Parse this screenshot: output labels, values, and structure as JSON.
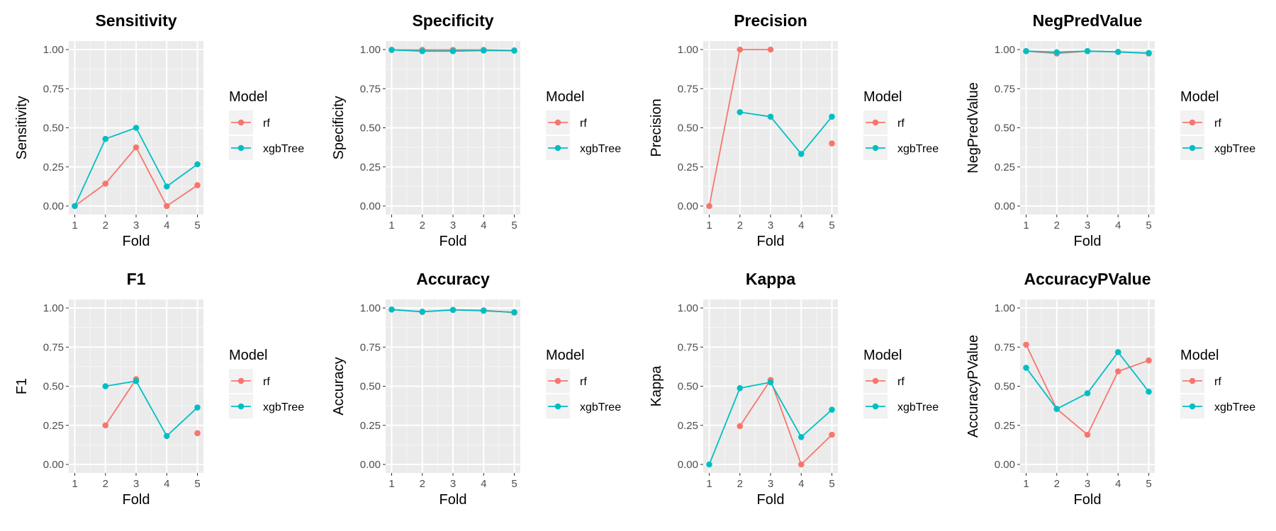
{
  "legend": {
    "title": "Model",
    "entries": [
      {
        "name": "rf",
        "color": "#F8766D"
      },
      {
        "name": "xgbTree",
        "color": "#00BFC4"
      }
    ]
  },
  "chart_data": [
    {
      "type": "line",
      "title": "Sensitivity",
      "xlabel": "Fold",
      "ylabel": "Sensitivity",
      "x": [
        1,
        2,
        3,
        4,
        5
      ],
      "ylim": [
        0,
        1
      ],
      "yticks": [
        "0.00",
        "0.25",
        "0.50",
        "0.75",
        "1.00"
      ],
      "series": [
        {
          "name": "rf",
          "values": [
            0.0,
            0.143,
            0.375,
            0.0,
            0.133
          ]
        },
        {
          "name": "xgbTree",
          "values": [
            0.0,
            0.429,
            0.5,
            0.125,
            0.267
          ]
        }
      ]
    },
    {
      "type": "line",
      "title": "Specificity",
      "xlabel": "Fold",
      "ylabel": "Specificity",
      "x": [
        1,
        2,
        3,
        4,
        5
      ],
      "ylim": [
        0,
        1
      ],
      "yticks": [
        "0.00",
        "0.25",
        "0.50",
        "0.75",
        "1.00"
      ],
      "series": [
        {
          "name": "rf",
          "values": [
            0.998,
            0.998,
            0.998,
            0.998,
            0.995
          ]
        },
        {
          "name": "xgbTree",
          "values": [
            0.998,
            0.99,
            0.99,
            0.994,
            0.993
          ]
        }
      ]
    },
    {
      "type": "line",
      "title": "Precision",
      "xlabel": "Fold",
      "ylabel": "Precision",
      "x": [
        1,
        2,
        3,
        4,
        5
      ],
      "ylim": [
        0,
        1
      ],
      "yticks": [
        "0.00",
        "0.25",
        "0.50",
        "0.75",
        "1.00"
      ],
      "series": [
        {
          "name": "rf",
          "values": [
            0.0,
            1.0,
            1.0,
            null,
            0.4
          ]
        },
        {
          "name": "xgbTree",
          "values": [
            null,
            0.6,
            0.571,
            0.333,
            0.571
          ]
        }
      ]
    },
    {
      "type": "line",
      "title": "NegPredValue",
      "xlabel": "Fold",
      "ylabel": "NegPredValue",
      "x": [
        1,
        2,
        3,
        4,
        5
      ],
      "ylim": [
        0,
        1
      ],
      "yticks": [
        "0.00",
        "0.25",
        "0.50",
        "0.75",
        "1.00"
      ],
      "series": [
        {
          "name": "rf",
          "values": [
            0.99,
            0.975,
            0.99,
            0.985,
            0.975
          ]
        },
        {
          "name": "xgbTree",
          "values": [
            0.99,
            0.983,
            0.99,
            0.985,
            0.978
          ]
        }
      ]
    },
    {
      "type": "line",
      "title": "F1",
      "xlabel": "Fold",
      "ylabel": "F1",
      "x": [
        1,
        2,
        3,
        4,
        5
      ],
      "ylim": [
        0,
        1
      ],
      "yticks": [
        "0.00",
        "0.25",
        "0.50",
        "0.75",
        "1.00"
      ],
      "series": [
        {
          "name": "rf",
          "values": [
            null,
            0.25,
            0.545,
            null,
            0.2
          ]
        },
        {
          "name": "xgbTree",
          "values": [
            null,
            0.5,
            0.533,
            0.182,
            0.364
          ]
        }
      ]
    },
    {
      "type": "line",
      "title": "Accuracy",
      "xlabel": "Fold",
      "ylabel": "Accuracy",
      "x": [
        1,
        2,
        3,
        4,
        5
      ],
      "ylim": [
        0,
        1
      ],
      "yticks": [
        "0.00",
        "0.25",
        "0.50",
        "0.75",
        "1.00"
      ],
      "series": [
        {
          "name": "rf",
          "values": [
            0.99,
            0.975,
            0.988,
            0.985,
            0.97
          ]
        },
        {
          "name": "xgbTree",
          "values": [
            0.99,
            0.976,
            0.988,
            0.982,
            0.973
          ]
        }
      ]
    },
    {
      "type": "line",
      "title": "Kappa",
      "xlabel": "Fold",
      "ylabel": "Kappa",
      "x": [
        1,
        2,
        3,
        4,
        5
      ],
      "ylim": [
        0,
        1
      ],
      "yticks": [
        "0.00",
        "0.25",
        "0.50",
        "0.75",
        "1.00"
      ],
      "series": [
        {
          "name": "rf",
          "values": [
            null,
            0.245,
            0.54,
            0.0,
            0.19
          ]
        },
        {
          "name": "xgbTree",
          "values": [
            0.0,
            0.488,
            0.525,
            0.175,
            0.35
          ]
        }
      ]
    },
    {
      "type": "line",
      "title": "AccuracyPValue",
      "xlabel": "Fold",
      "ylabel": "AccuracyPValue",
      "x": [
        1,
        2,
        3,
        4,
        5
      ],
      "ylim": [
        0,
        1
      ],
      "yticks": [
        "0.00",
        "0.25",
        "0.50",
        "0.75",
        "1.00"
      ],
      "series": [
        {
          "name": "rf",
          "values": [
            0.765,
            0.355,
            0.19,
            0.595,
            0.665
          ]
        },
        {
          "name": "xgbTree",
          "values": [
            0.618,
            0.355,
            0.455,
            0.718,
            0.465
          ]
        }
      ]
    }
  ]
}
